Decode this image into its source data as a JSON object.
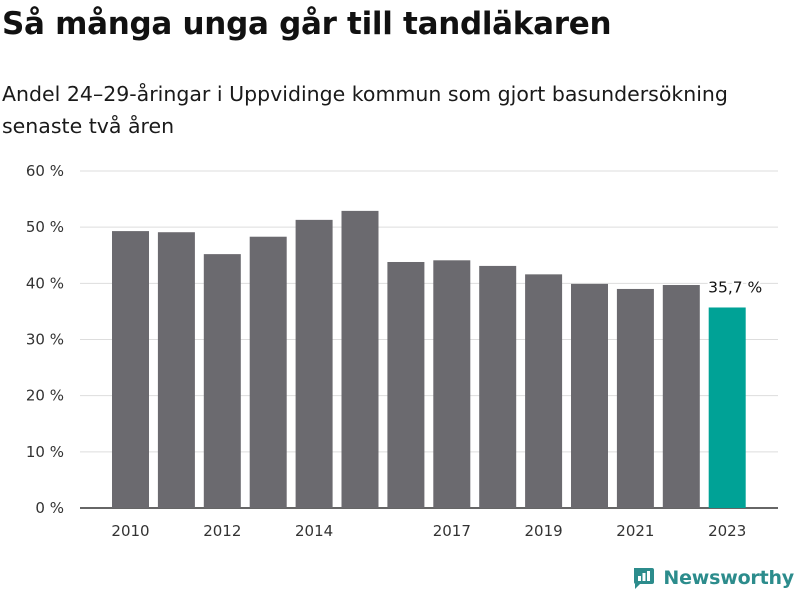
{
  "title": "Så många unga går till tandläkaren",
  "subtitle": "Andel 24–29-åringar i Uppvidinge kommun som gjort basundersökning senaste två åren",
  "brand": {
    "name": "Newsworthy",
    "icon": "newsworthy-chart-logo-icon"
  },
  "colors": {
    "bar": "#6b6a6f",
    "highlight": "#00a296",
    "grid": "#dddddd",
    "axis": "#333333"
  },
  "chart_data": {
    "type": "bar",
    "categories": [
      "2010",
      "2011",
      "2012",
      "2013",
      "2014",
      "2015",
      "2016",
      "2017",
      "2018",
      "2019",
      "2020",
      "2021",
      "2022",
      "2023"
    ],
    "values": [
      49.3,
      49.1,
      45.2,
      48.3,
      51.3,
      52.9,
      43.8,
      44.1,
      43.1,
      41.6,
      39.9,
      39.0,
      39.7,
      35.7
    ],
    "highlight_index": 13,
    "x_tick_labels": [
      "2010",
      "",
      "2012",
      "",
      "2014",
      "",
      "",
      "2017",
      "",
      "2019",
      "",
      "2021",
      "",
      "2023"
    ],
    "y_ticks": [
      0,
      10,
      20,
      30,
      40,
      50,
      60
    ],
    "y_tick_labels": [
      "0 %",
      "10 %",
      "20 %",
      "30 %",
      "40 %",
      "50 %",
      "60 %"
    ],
    "ylim": [
      0,
      60
    ],
    "grid": true,
    "data_labels": [
      {
        "index": 13,
        "text": "35,7 %"
      }
    ],
    "title": "Så många unga går till tandläkaren",
    "xlabel": "",
    "ylabel": ""
  }
}
